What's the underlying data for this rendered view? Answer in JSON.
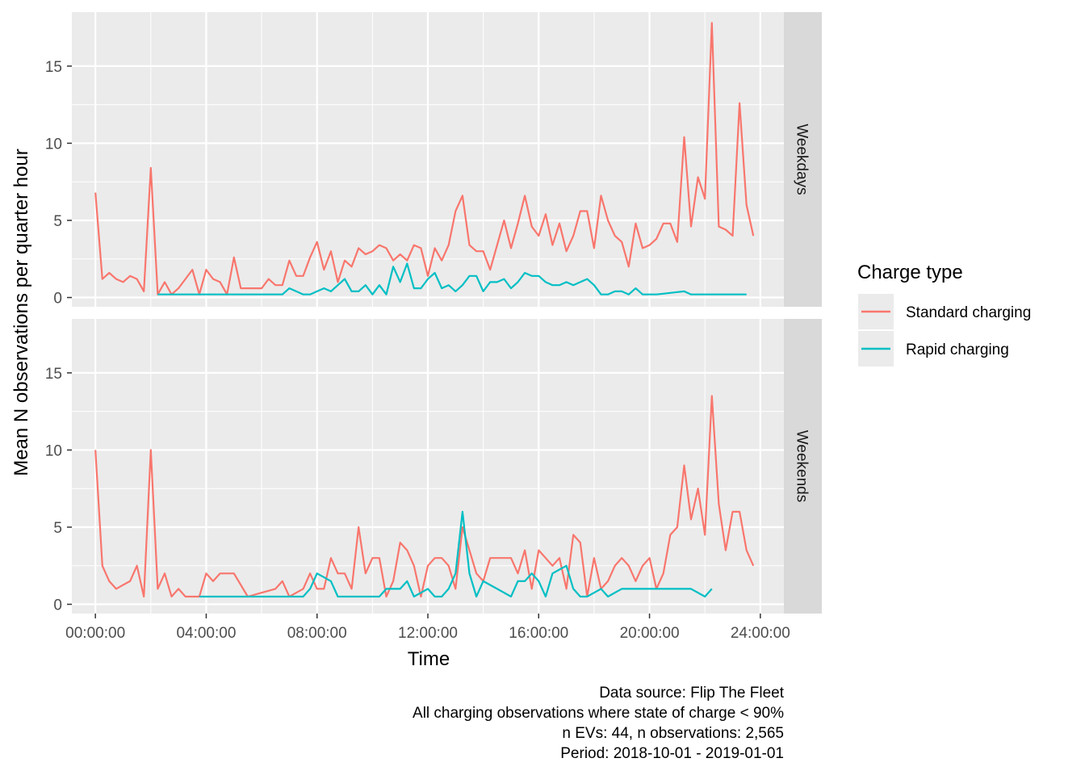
{
  "chart_data": {
    "type": "line",
    "title": "",
    "xlabel": "Time",
    "ylabel": "Mean N observations per quarter hour",
    "x_unit": "hours",
    "xlim": [
      -0.85,
      24.85
    ],
    "ylim": [
      -0.6,
      18.5
    ],
    "x_ticks": [
      0,
      4,
      8,
      12,
      16,
      20,
      24
    ],
    "x_tick_labels": [
      "00:00:00",
      "04:00:00",
      "08:00:00",
      "12:00:00",
      "16:00:00",
      "20:00:00",
      "24:00:00"
    ],
    "y_ticks": [
      0,
      5,
      10,
      15
    ],
    "y_tick_labels": [
      "0",
      "5",
      "10",
      "15"
    ],
    "grid": true,
    "legend": {
      "title": "Charge type",
      "position": "right",
      "entries": [
        "Standard charging",
        "Rapid charging"
      ]
    },
    "colors": {
      "Standard charging": "#F8766D",
      "Rapid charging": "#00BFC4"
    },
    "caption": [
      "Data source: Flip The Fleet",
      "All charging observations where state of charge < 90%",
      "n EVs: 44, n observations: 2,565",
      "Period: 2018-10-01 - 2019-01-01"
    ],
    "panels": [
      {
        "strip": "Weekdays",
        "series": [
          {
            "name": "Standard charging",
            "x": [
              0,
              0.25,
              0.5,
              0.75,
              1,
              1.25,
              1.5,
              1.75,
              2,
              2.25,
              2.5,
              2.75,
              3,
              3.25,
              3.5,
              3.75,
              4,
              4.25,
              4.5,
              4.75,
              5,
              5.25,
              5.5,
              5.75,
              6,
              6.25,
              6.5,
              6.75,
              7,
              7.25,
              7.5,
              7.75,
              8,
              8.25,
              8.5,
              8.75,
              9,
              9.25,
              9.5,
              9.75,
              10,
              10.25,
              10.5,
              10.75,
              11,
              11.25,
              11.5,
              11.75,
              12,
              12.25,
              12.5,
              12.75,
              13,
              13.25,
              13.5,
              13.75,
              14,
              14.25,
              14.5,
              14.75,
              15,
              15.25,
              15.5,
              15.75,
              16,
              16.25,
              16.5,
              16.75,
              17,
              17.25,
              17.5,
              17.75,
              18,
              18.25,
              18.5,
              18.75,
              19,
              19.25,
              19.5,
              19.75,
              20,
              20.25,
              20.5,
              20.75,
              21,
              21.25,
              21.5,
              21.75,
              22,
              22.25,
              22.5,
              22.75,
              23,
              23.25,
              23.5,
              23.75
            ],
            "y": [
              6.8,
              1.2,
              1.6,
              1.2,
              1.0,
              1.4,
              1.2,
              0.4,
              8.4,
              0.2,
              1.0,
              0.2,
              0.6,
              1.2,
              1.8,
              0.2,
              1.8,
              1.2,
              1.0,
              0.2,
              2.6,
              0.6,
              0.6,
              0.6,
              0.6,
              1.2,
              0.8,
              0.8,
              2.4,
              1.4,
              1.4,
              2.6,
              3.6,
              1.8,
              3.0,
              1.0,
              2.4,
              2.0,
              3.2,
              2.8,
              3.0,
              3.4,
              3.2,
              2.4,
              2.8,
              2.4,
              3.4,
              3.2,
              1.4,
              3.2,
              2.4,
              3.4,
              5.6,
              6.6,
              3.4,
              3.0,
              3.0,
              1.8,
              3.4,
              5.0,
              3.2,
              4.8,
              6.6,
              4.6,
              4.0,
              5.4,
              3.4,
              4.8,
              3.0,
              4.0,
              5.6,
              5.6,
              3.2,
              6.6,
              5.0,
              4.0,
              3.6,
              2.0,
              4.8,
              3.2,
              3.4,
              3.8,
              4.8,
              4.8,
              3.6,
              10.4,
              4.6,
              7.8,
              6.4,
              17.8,
              4.6,
              4.4,
              4.0,
              12.6,
              6.0,
              4.0
            ]
          },
          {
            "name": "Rapid charging",
            "x": [
              2.25,
              2.5,
              2.75,
              3,
              3.25,
              3.5,
              3.75,
              4,
              4.25,
              4.5,
              4.75,
              5,
              5.25,
              5.5,
              5.75,
              6,
              6.25,
              6.5,
              6.75,
              7,
              7.25,
              7.5,
              7.75,
              8,
              8.25,
              8.5,
              8.75,
              9,
              9.25,
              9.5,
              9.75,
              10,
              10.25,
              10.5,
              10.75,
              11,
              11.25,
              11.5,
              11.75,
              12,
              12.25,
              12.5,
              12.75,
              13,
              13.25,
              13.5,
              13.75,
              14,
              14.25,
              14.5,
              14.75,
              15,
              15.25,
              15.5,
              15.75,
              16,
              16.25,
              16.5,
              16.75,
              17,
              17.25,
              17.5,
              17.75,
              18,
              18.25,
              18.5,
              18.75,
              19,
              19.25,
              19.5,
              19.75,
              20,
              20.25,
              20.5,
              20.75,
              21,
              21.25,
              21.5,
              21.75,
              22,
              22.25,
              22.5,
              22.75,
              23,
              23.25,
              23.5
            ],
            "y": [
              0.2,
              0.2,
              0.2,
              0.2,
              0.2,
              0.2,
              0.2,
              0.2,
              0.2,
              0.2,
              0.2,
              0.2,
              0.2,
              0.2,
              0.2,
              0.2,
              0.2,
              0.2,
              0.2,
              0.6,
              0.4,
              0.2,
              0.2,
              0.4,
              0.6,
              0.4,
              0.8,
              1.2,
              0.4,
              0.4,
              0.8,
              0.2,
              0.8,
              0.2,
              2.0,
              1.0,
              2.2,
              0.6,
              0.6,
              1.2,
              1.6,
              0.6,
              0.8,
              0.4,
              0.8,
              1.4,
              1.4,
              0.4,
              1.0,
              1.0,
              1.2,
              0.6,
              1.0,
              1.6,
              1.4,
              1.4,
              1.0,
              0.8,
              0.8,
              1.0,
              0.8,
              1.0,
              1.2,
              0.8,
              0.2,
              0.2,
              0.4,
              0.4,
              0.2,
              0.6,
              0.2,
              0.2,
              0.2,
              0.25,
              0.3,
              0.35,
              0.4,
              0.2,
              0.2,
              0.2,
              0.2,
              0.2,
              0.2,
              0.2,
              0.2,
              0.2
            ]
          }
        ]
      },
      {
        "strip": "Weekends",
        "series": [
          {
            "name": "Standard charging",
            "x": [
              0,
              0.25,
              0.5,
              0.75,
              1,
              1.25,
              1.5,
              1.75,
              2,
              2.25,
              2.5,
              2.75,
              3,
              3.25,
              3.5,
              3.75,
              4,
              4.25,
              4.5,
              4.75,
              5,
              5.5,
              6,
              6.5,
              6.75,
              7,
              7.25,
              7.5,
              7.75,
              8,
              8.25,
              8.5,
              8.75,
              9,
              9.25,
              9.5,
              9.75,
              10,
              10.25,
              10.5,
              10.75,
              11,
              11.25,
              11.5,
              11.75,
              12,
              12.25,
              12.5,
              12.75,
              13,
              13.25,
              13.5,
              13.75,
              14,
              14.25,
              14.5,
              14.75,
              15,
              15.25,
              15.5,
              15.75,
              16,
              16.25,
              16.5,
              16.75,
              17,
              17.25,
              17.5,
              17.75,
              18,
              18.25,
              18.5,
              18.75,
              19,
              19.25,
              19.5,
              19.75,
              20,
              20.25,
              20.5,
              20.75,
              21,
              21.25,
              21.5,
              21.75,
              22,
              22.25,
              22.5,
              22.75,
              23,
              23.25,
              23.5,
              23.75
            ],
            "y": [
              10.0,
              2.5,
              1.5,
              1.0,
              1.25,
              1.5,
              2.5,
              0.5,
              10.0,
              1.0,
              2.0,
              0.5,
              1.0,
              0.5,
              0.5,
              0.5,
              2.0,
              1.5,
              2.0,
              2.0,
              2.0,
              0.5,
              0.75,
              1.0,
              1.5,
              0.5,
              0.75,
              1.0,
              2.0,
              1.0,
              1.0,
              3.0,
              2.0,
              2.0,
              1.0,
              5.0,
              2.0,
              3.0,
              3.0,
              0.5,
              1.5,
              4.0,
              3.5,
              2.5,
              0.5,
              2.5,
              3.0,
              3.0,
              2.5,
              1.0,
              5.0,
              3.5,
              2.0,
              1.5,
              3.0,
              3.0,
              3.0,
              3.0,
              2.0,
              3.5,
              1.0,
              3.5,
              3.0,
              2.5,
              3.0,
              1.0,
              4.5,
              4.0,
              0.5,
              3.0,
              1.0,
              1.5,
              2.5,
              3.0,
              2.5,
              1.5,
              2.5,
              3.0,
              1.0,
              2.0,
              4.5,
              5.0,
              9.0,
              5.5,
              7.5,
              4.5,
              13.5,
              6.5,
              3.5,
              6.0,
              6.0,
              3.5,
              2.5
            ]
          },
          {
            "name": "Rapid charging",
            "x": [
              3.75,
              4,
              4.5,
              5,
              5.5,
              6,
              6.5,
              7,
              7.5,
              7.75,
              8,
              8.25,
              8.5,
              8.75,
              9,
              9.5,
              10,
              10.25,
              10.5,
              10.75,
              11,
              11.25,
              11.5,
              11.75,
              12,
              12.25,
              12.5,
              12.75,
              13,
              13.25,
              13.5,
              13.75,
              14,
              14.5,
              15,
              15.25,
              15.5,
              15.75,
              16,
              16.25,
              16.5,
              16.75,
              17,
              17.25,
              17.5,
              17.75,
              18,
              18.25,
              18.5,
              19,
              19.5,
              20,
              20.5,
              21,
              21.5,
              22,
              22.25
            ],
            "y": [
              0.5,
              0.5,
              0.5,
              0.5,
              0.5,
              0.5,
              0.5,
              0.5,
              0.5,
              1.0,
              2.0,
              1.75,
              1.5,
              0.5,
              0.5,
              0.5,
              0.5,
              0.5,
              1.0,
              1.0,
              1.0,
              1.5,
              0.5,
              0.75,
              1.0,
              0.5,
              0.5,
              1.0,
              2.0,
              6.0,
              2.0,
              0.5,
              1.5,
              1.0,
              0.5,
              1.5,
              1.5,
              2.0,
              1.5,
              0.5,
              2.0,
              2.25,
              2.5,
              1.0,
              0.5,
              0.5,
              0.75,
              1.0,
              0.5,
              1.0,
              1.0,
              1.0,
              1.0,
              1.0,
              1.0,
              0.5,
              1.0
            ]
          }
        ]
      }
    ]
  }
}
